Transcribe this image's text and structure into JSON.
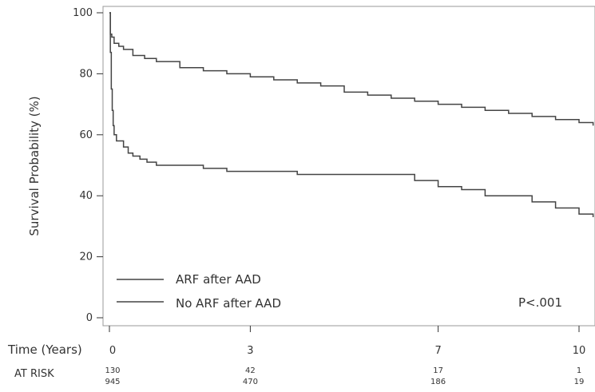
{
  "chart_data": {
    "type": "line",
    "title": "",
    "xlabel": "Time (Years)",
    "ylabel": "Survival Probability (%)",
    "xlim": [
      0,
      10.3
    ],
    "ylim": [
      0,
      100
    ],
    "x_ticks": [
      0,
      3,
      7,
      10
    ],
    "y_ticks": [
      0,
      20,
      40,
      60,
      80,
      100
    ],
    "grid": false,
    "legend_position": "bottom-left",
    "annotation": "P<.001",
    "series": [
      {
        "name": "ARF after AAD",
        "color": "#444444",
        "x": [
          0,
          0.02,
          0.04,
          0.06,
          0.08,
          0.1,
          0.15,
          0.2,
          0.3,
          0.4,
          0.5,
          0.65,
          0.8,
          1.0,
          1.5,
          2.0,
          2.5,
          3.0,
          4.0,
          5.0,
          6.0,
          6.5,
          7.0,
          7.5,
          8.0,
          9.0,
          9.5,
          10.0,
          10.3
        ],
        "y": [
          100,
          87,
          75,
          68,
          63,
          60,
          58,
          58,
          56,
          54,
          53,
          52,
          51,
          50,
          50,
          49,
          48,
          48,
          47,
          47,
          47,
          45,
          43,
          42,
          40,
          38,
          36,
          34,
          33
        ]
      },
      {
        "name": "No ARF after AAD",
        "color": "#444444",
        "x": [
          0,
          0.02,
          0.05,
          0.1,
          0.2,
          0.3,
          0.5,
          0.75,
          1.0,
          1.5,
          2.0,
          2.5,
          3.0,
          3.5,
          4.0,
          4.5,
          5.0,
          5.5,
          6.0,
          6.5,
          7.0,
          7.5,
          8.0,
          8.5,
          9.0,
          9.5,
          10.0,
          10.3
        ],
        "y": [
          100,
          93,
          92,
          90,
          89,
          88,
          86,
          85,
          84,
          82,
          81,
          80,
          79,
          78,
          77,
          76,
          74,
          73,
          72,
          71,
          70,
          69,
          68,
          67,
          66,
          65,
          64,
          63
        ]
      }
    ],
    "at_risk": {
      "label": "AT RISK",
      "times": [
        0,
        3,
        7,
        10
      ],
      "rows": [
        [
          130,
          42,
          17,
          1
        ],
        [
          945,
          470,
          186,
          19
        ]
      ]
    }
  }
}
